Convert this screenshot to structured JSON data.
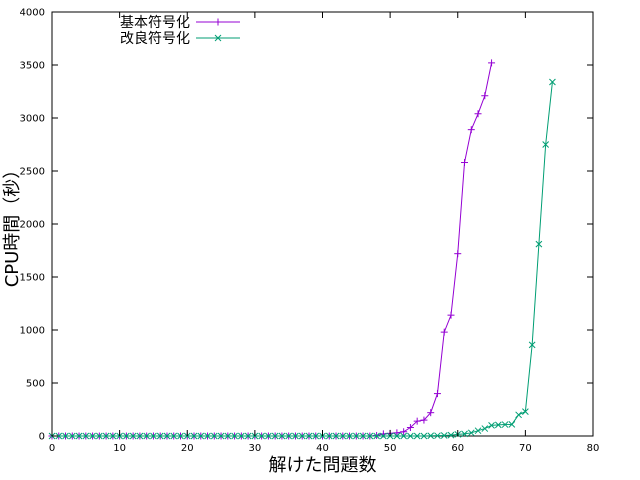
{
  "chart_data": {
    "type": "line",
    "title": "",
    "xlabel": "解けた問題数",
    "ylabel": "CPU時間（秒）",
    "xlim": [
      0,
      80
    ],
    "ylim": [
      0,
      4000
    ],
    "x_ticks": [
      0,
      10,
      20,
      30,
      40,
      50,
      60,
      70,
      80
    ],
    "y_ticks": [
      0,
      500,
      1000,
      1500,
      2000,
      2500,
      3000,
      3500,
      4000
    ],
    "grid": false,
    "legend": "top-left",
    "series": [
      {
        "name": "基本符号化",
        "color": "#9400d3",
        "marker": "plus",
        "x": [
          0,
          1,
          2,
          3,
          4,
          5,
          6,
          7,
          8,
          9,
          10,
          11,
          12,
          13,
          14,
          15,
          16,
          17,
          18,
          19,
          20,
          21,
          22,
          23,
          24,
          25,
          26,
          27,
          28,
          29,
          30,
          31,
          32,
          33,
          34,
          35,
          36,
          37,
          38,
          39,
          40,
          41,
          42,
          43,
          44,
          45,
          46,
          47,
          48,
          49,
          50,
          51,
          52,
          53,
          54,
          55,
          56,
          57,
          58,
          59,
          60,
          61,
          62,
          63,
          64,
          65
        ],
        "y": [
          0,
          0,
          0,
          0,
          0,
          0,
          0,
          0,
          0,
          0,
          0,
          0,
          0,
          0,
          0,
          0,
          0,
          0,
          0,
          0,
          0,
          0,
          0,
          0,
          0,
          0,
          0,
          0,
          0,
          0,
          0,
          0,
          0,
          0,
          0,
          0,
          0,
          0,
          0,
          0,
          0,
          0,
          0,
          0,
          0,
          0,
          0,
          0,
          5,
          20,
          25,
          30,
          40,
          80,
          140,
          150,
          220,
          400,
          980,
          1140,
          1720,
          2580,
          2890,
          3040,
          3210,
          3520
        ]
      },
      {
        "name": "改良符号化",
        "color": "#009e73",
        "marker": "cross",
        "x": [
          0,
          1,
          2,
          3,
          4,
          5,
          6,
          7,
          8,
          9,
          10,
          11,
          12,
          13,
          14,
          15,
          16,
          17,
          18,
          19,
          20,
          21,
          22,
          23,
          24,
          25,
          26,
          27,
          28,
          29,
          30,
          31,
          32,
          33,
          34,
          35,
          36,
          37,
          38,
          39,
          40,
          41,
          42,
          43,
          44,
          45,
          46,
          47,
          48,
          49,
          50,
          51,
          52,
          53,
          54,
          55,
          56,
          57,
          58,
          59,
          60,
          61,
          62,
          63,
          64,
          65,
          66,
          67,
          68,
          69,
          70,
          71,
          72,
          73,
          74
        ],
        "y": [
          0,
          0,
          0,
          0,
          0,
          0,
          0,
          0,
          0,
          0,
          0,
          0,
          0,
          0,
          0,
          0,
          0,
          0,
          0,
          0,
          0,
          0,
          0,
          0,
          0,
          0,
          0,
          0,
          0,
          0,
          0,
          0,
          0,
          0,
          0,
          0,
          0,
          0,
          0,
          0,
          0,
          0,
          0,
          0,
          0,
          0,
          0,
          0,
          0,
          0,
          0,
          0,
          0,
          0,
          0,
          0,
          2,
          3,
          5,
          8,
          15,
          20,
          30,
          50,
          70,
          100,
          105,
          108,
          110,
          200,
          230,
          860,
          1810,
          2750,
          3340
        ]
      }
    ]
  }
}
